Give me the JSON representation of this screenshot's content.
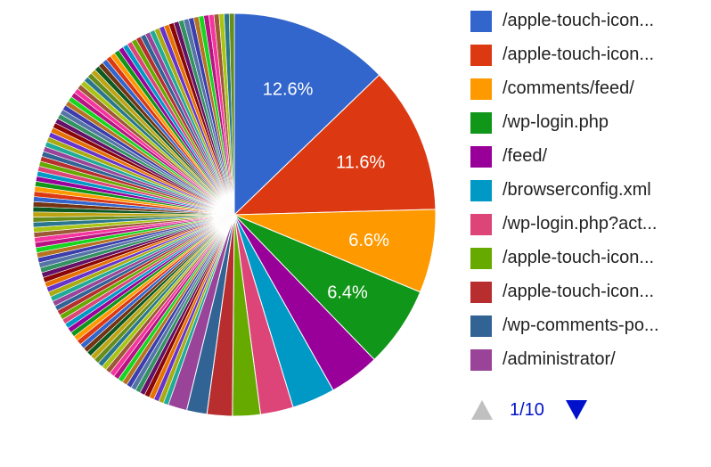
{
  "chart_data": {
    "type": "pie",
    "slices": [
      {
        "label": "/apple-touch-icon...",
        "value": 12.6,
        "color": "#3366cc"
      },
      {
        "label": "/apple-touch-icon...",
        "value": 11.6,
        "color": "#dc3912"
      },
      {
        "label": "/comments/feed/",
        "value": 6.6,
        "color": "#ff9900"
      },
      {
        "label": "/wp-login.php",
        "value": 6.4,
        "color": "#109618"
      },
      {
        "label": "/feed/",
        "value": 4.0,
        "color": "#990099"
      },
      {
        "label": "/browserconfig.xml",
        "value": 3.4,
        "color": "#0099c6"
      },
      {
        "label": "/wp-login.php?act...",
        "value": 2.6,
        "color": "#dd4477"
      },
      {
        "label": "/apple-touch-icon...",
        "value": 2.2,
        "color": "#66aa00"
      },
      {
        "label": "/apple-touch-icon...",
        "value": 2.0,
        "color": "#b82e2e"
      },
      {
        "label": "/wp-comments-po...",
        "value": 1.6,
        "color": "#316395"
      },
      {
        "label": "/administrator/",
        "value": 1.5,
        "color": "#994499"
      }
    ],
    "slice_labels": [
      "12.6%",
      "11.6%",
      "6.6%",
      "6.4%"
    ],
    "other_slices": {
      "count": 110,
      "value_each": 0.4
    },
    "palette": [
      "#3366cc",
      "#dc3912",
      "#ff9900",
      "#109618",
      "#990099",
      "#0099c6",
      "#dd4477",
      "#66aa00",
      "#b82e2e",
      "#316395",
      "#994499",
      "#22aa99",
      "#aaaa11",
      "#6633cc",
      "#e67300",
      "#8b0707",
      "#651067",
      "#329262",
      "#5574a6",
      "#3b3eac",
      "#b77322",
      "#16d620",
      "#b91383",
      "#f4359e",
      "#9c5935",
      "#a9c413",
      "#2a778d",
      "#668d1c",
      "#bea413",
      "#0c5922",
      "#743411"
    ],
    "legend_position": "right"
  },
  "legend": {
    "items": [
      {
        "label": "/apple-touch-icon...",
        "color": "#3366cc"
      },
      {
        "label": "/apple-touch-icon...",
        "color": "#dc3912"
      },
      {
        "label": "/comments/feed/",
        "color": "#ff9900"
      },
      {
        "label": "/wp-login.php",
        "color": "#109618"
      },
      {
        "label": "/feed/",
        "color": "#990099"
      },
      {
        "label": "/browserconfig.xml",
        "color": "#0099c6"
      },
      {
        "label": "/wp-login.php?act...",
        "color": "#dd4477"
      },
      {
        "label": "/apple-touch-icon...",
        "color": "#66aa00"
      },
      {
        "label": "/apple-touch-icon...",
        "color": "#b82e2e"
      },
      {
        "label": "/wp-comments-po...",
        "color": "#316395"
      },
      {
        "label": "/administrator/",
        "color": "#994499"
      }
    ]
  },
  "pager": {
    "text": "1/10",
    "prev_color": "#c0c0c0",
    "next_color": "#0011cc"
  }
}
